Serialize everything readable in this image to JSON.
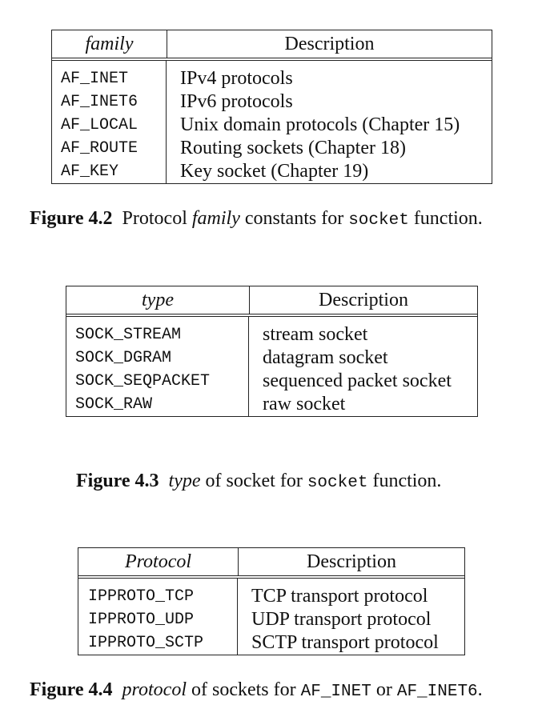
{
  "tables": [
    {
      "header": [
        "family",
        "Description"
      ],
      "rows": [
        [
          "AF_INET",
          "IPv4 protocols"
        ],
        [
          "AF_INET6",
          "IPv6 protocols"
        ],
        [
          "AF_LOCAL",
          "Unix domain protocols (Chapter 15)"
        ],
        [
          "AF_ROUTE",
          "Routing sockets (Chapter 18)"
        ],
        [
          "AF_KEY",
          "Key socket (Chapter 19)"
        ]
      ]
    },
    {
      "header": [
        "type",
        "Description"
      ],
      "rows": [
        [
          "SOCK_STREAM",
          "stream socket"
        ],
        [
          "SOCK_DGRAM",
          "datagram socket"
        ],
        [
          "SOCK_SEQPACKET",
          "sequenced packet socket"
        ],
        [
          "SOCK_RAW",
          "raw socket"
        ]
      ]
    },
    {
      "header": [
        "Protocol",
        "Description"
      ],
      "rows": [
        [
          "IPPROTO_TCP",
          "TCP transport protocol"
        ],
        [
          "IPPROTO_UDP",
          "UDP transport protocol"
        ],
        [
          "IPPROTO_SCTP",
          "SCTP transport protocol"
        ]
      ]
    }
  ],
  "captions": [
    {
      "label": "Figure 4.2",
      "parts": [
        "Protocol ",
        "family",
        " constants for ",
        "socket",
        " function."
      ]
    },
    {
      "label": "Figure 4.3",
      "parts": [
        "type",
        " of socket for ",
        "socket",
        " function."
      ]
    },
    {
      "label": "Figure 4.4",
      "parts": [
        "protocol",
        " of sockets for ",
        "AF_INET",
        " or ",
        "AF_INET6",
        "."
      ]
    }
  ]
}
